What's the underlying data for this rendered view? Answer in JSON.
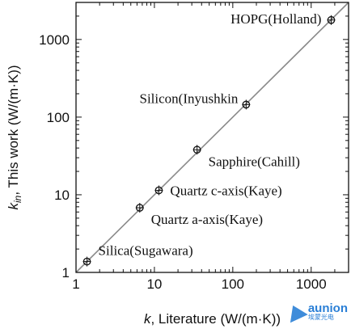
{
  "chart_data": {
    "type": "scatter",
    "xlabel_k": "k",
    "xlabel_rest": ", Literature (W/(m·K))",
    "ylabel_k": "k",
    "ylabel_sub": "in",
    "ylabel_rest": ", This work (W/(m·K))",
    "x_scale": "log",
    "y_scale": "log",
    "xlim": [
      1,
      3000
    ],
    "ylim": [
      1,
      3000
    ],
    "x_ticks": [
      1,
      10,
      100,
      1000
    ],
    "x_tick_labels": [
      "1",
      "10",
      "100",
      "1000"
    ],
    "y_ticks": [
      1,
      10,
      100,
      1000
    ],
    "y_tick_labels": [
      "1",
      "10",
      "100",
      "1000"
    ],
    "grid": false,
    "reference_line": "y = x",
    "points": [
      {
        "label": "Silica(Sugawara)",
        "x": 1.38,
        "y": 1.38,
        "label_side": "right-above"
      },
      {
        "label": "Quartz a-axis(Kaye)",
        "x": 6.5,
        "y": 6.8,
        "label_side": "right-below"
      },
      {
        "label": "Quartz c-axis(Kaye)",
        "x": 11.4,
        "y": 11.4,
        "label_side": "right"
      },
      {
        "label": "Sapphire(Cahill)",
        "x": 35,
        "y": 38,
        "label_side": "right-below"
      },
      {
        "label": "Silicon(Inyushkin",
        "x": 148,
        "y": 145,
        "label_side": "left-above"
      },
      {
        "label": "HOPG(Holland)",
        "x": 1800,
        "y": 1780,
        "label_side": "left"
      }
    ]
  },
  "watermark": {
    "brand": "aunion",
    "sub": "埃蒙光电"
  }
}
